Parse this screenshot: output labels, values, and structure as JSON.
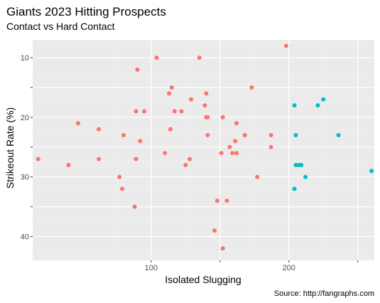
{
  "chart_data": {
    "type": "scatter",
    "title": "Giants 2023 Hitting Prospects",
    "subtitle": "Contact vs Hard Contact",
    "xlabel": "Isolated Slugging",
    "ylabel": "Strikeout Rate (%)",
    "caption": "Source: http://fangraphs.com",
    "xlim": [
      14,
      262
    ],
    "ylim": [
      7,
      44
    ],
    "y_reversed": true,
    "x_ticks": [
      100,
      150,
      200,
      250
    ],
    "x_tick_labels": [
      "100",
      "",
      "200",
      ""
    ],
    "y_ticks": [
      10,
      15,
      20,
      25,
      30,
      35,
      40
    ],
    "y_tick_labels": [
      "10",
      "",
      "20",
      "",
      "30",
      "",
      "40"
    ],
    "grid": true,
    "legend": "none",
    "series": [
      {
        "color": "#F8766D",
        "points": [
          [
            18,
            27
          ],
          [
            40,
            28
          ],
          [
            47,
            21
          ],
          [
            62,
            22
          ],
          [
            62,
            27
          ],
          [
            77,
            30
          ],
          [
            79,
            32
          ],
          [
            80,
            23
          ],
          [
            88,
            35
          ],
          [
            89,
            19
          ],
          [
            89,
            27
          ],
          [
            90,
            12
          ],
          [
            92,
            24
          ],
          [
            95,
            19
          ],
          [
            104,
            10
          ],
          [
            110,
            26
          ],
          [
            113,
            16
          ],
          [
            114,
            22
          ],
          [
            115,
            15
          ],
          [
            117,
            19
          ],
          [
            122,
            19
          ],
          [
            125,
            28
          ],
          [
            128,
            27
          ],
          [
            129,
            17
          ],
          [
            135,
            10
          ],
          [
            139,
            18
          ],
          [
            140,
            16
          ],
          [
            140,
            20
          ],
          [
            141,
            23
          ],
          [
            141,
            20
          ],
          [
            146,
            39
          ],
          [
            148,
            34
          ],
          [
            151,
            26
          ],
          [
            152,
            42
          ],
          [
            152,
            20
          ],
          [
            155,
            34
          ],
          [
            157,
            25
          ],
          [
            159,
            26
          ],
          [
            161,
            24
          ],
          [
            162,
            21
          ],
          [
            162,
            26
          ],
          [
            168,
            23
          ],
          [
            173,
            15
          ],
          [
            177,
            30
          ],
          [
            187,
            25
          ],
          [
            187,
            23
          ],
          [
            198,
            8
          ]
        ]
      },
      {
        "color": "#00BFC4",
        "points": [
          [
            204,
            18
          ],
          [
            204,
            32
          ],
          [
            205,
            28
          ],
          [
            205,
            23
          ],
          [
            207,
            28
          ],
          [
            209,
            28
          ],
          [
            212,
            30
          ],
          [
            221,
            18
          ],
          [
            225,
            17
          ],
          [
            236,
            23
          ],
          [
            260,
            29
          ]
        ]
      }
    ]
  }
}
